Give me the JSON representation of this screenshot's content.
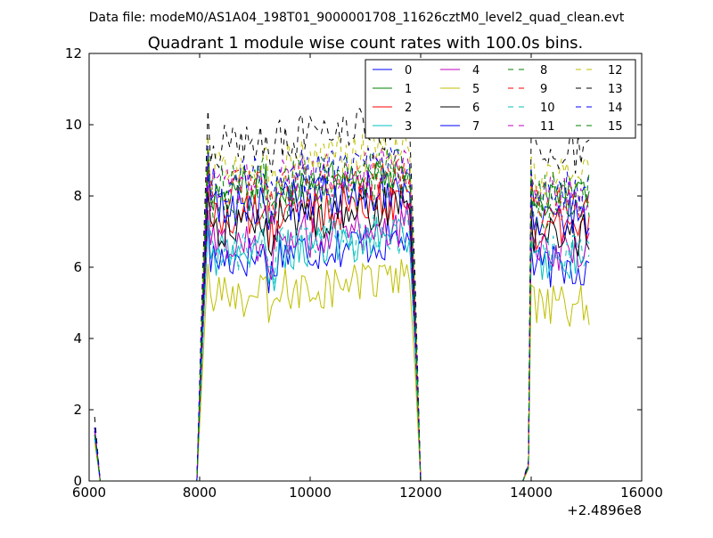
{
  "suptitle": "Data file: modeM0/AS1A04_198T01_9000001708_11626cztM0_level2_quad_clean.evt",
  "chart_data": {
    "type": "line",
    "title": "Quadrant 1 module wise count rates with 100.0s bins.",
    "xlabel": "",
    "ylabel": "",
    "x_offset_label": "+2.4896e8",
    "xlim": [
      6000,
      16000
    ],
    "ylim": [
      0,
      12
    ],
    "xticks": [
      6000,
      8000,
      10000,
      12000,
      14000,
      16000
    ],
    "yticks": [
      0,
      2,
      4,
      6,
      8,
      10,
      12
    ],
    "grid": false,
    "legend_position": "top-right",
    "series": [
      {
        "name": "0",
        "color": "#0000ff",
        "dashed": false,
        "level": 6.2,
        "end": 6.0,
        "first": 1.4
      },
      {
        "name": "1",
        "color": "#008000",
        "dashed": false,
        "level": 8.1,
        "end": 7.9,
        "first": 1.3
      },
      {
        "name": "2",
        "color": "#ff0000",
        "dashed": false,
        "level": 7.3,
        "end": 7.1,
        "first": 1.5
      },
      {
        "name": "3",
        "color": "#00bfbf",
        "dashed": false,
        "level": 6.3,
        "end": 6.2,
        "first": 1.2
      },
      {
        "name": "4",
        "color": "#bf00bf",
        "dashed": false,
        "level": 6.6,
        "end": 6.4,
        "first": 1.3
      },
      {
        "name": "5",
        "color": "#bfbf00",
        "dashed": false,
        "level": 5.1,
        "end": 4.9,
        "first": 1.1
      },
      {
        "name": "6",
        "color": "#000000",
        "dashed": false,
        "level": 7.1,
        "end": 6.9,
        "first": 1.4
      },
      {
        "name": "7",
        "color": "#0000ff",
        "dashed": false,
        "level": 7.6,
        "end": 7.4,
        "first": 1.5
      },
      {
        "name": "8",
        "color": "#008000",
        "dashed": true,
        "level": 7.8,
        "end": 7.6,
        "first": 1.3
      },
      {
        "name": "9",
        "color": "#ff0000",
        "dashed": true,
        "level": 8.0,
        "end": 7.8,
        "first": 1.5
      },
      {
        "name": "10",
        "color": "#00bfbf",
        "dashed": true,
        "level": 6.4,
        "end": 6.3,
        "first": 1.2
      },
      {
        "name": "11",
        "color": "#bf00bf",
        "dashed": true,
        "level": 8.2,
        "end": 8.0,
        "first": 1.4
      },
      {
        "name": "12",
        "color": "#bfbf00",
        "dashed": true,
        "level": 8.7,
        "end": 8.5,
        "first": 1.3
      },
      {
        "name": "13",
        "color": "#000000",
        "dashed": true,
        "level": 9.4,
        "end": 9.2,
        "first": 1.8
      },
      {
        "name": "14",
        "color": "#0000ff",
        "dashed": true,
        "level": 8.4,
        "end": 8.2,
        "first": 1.5
      },
      {
        "name": "15",
        "color": "#008000",
        "dashed": true,
        "level": 8.3,
        "end": 8.1,
        "first": 1.3
      }
    ],
    "segments": [
      {
        "x_start": 6100,
        "x_end": 6200,
        "kind": "start"
      },
      {
        "x_start": 8000,
        "x_end": 11950,
        "kind": "on"
      },
      {
        "x_start": 13950,
        "x_end": 15050,
        "kind": "on"
      }
    ]
  }
}
